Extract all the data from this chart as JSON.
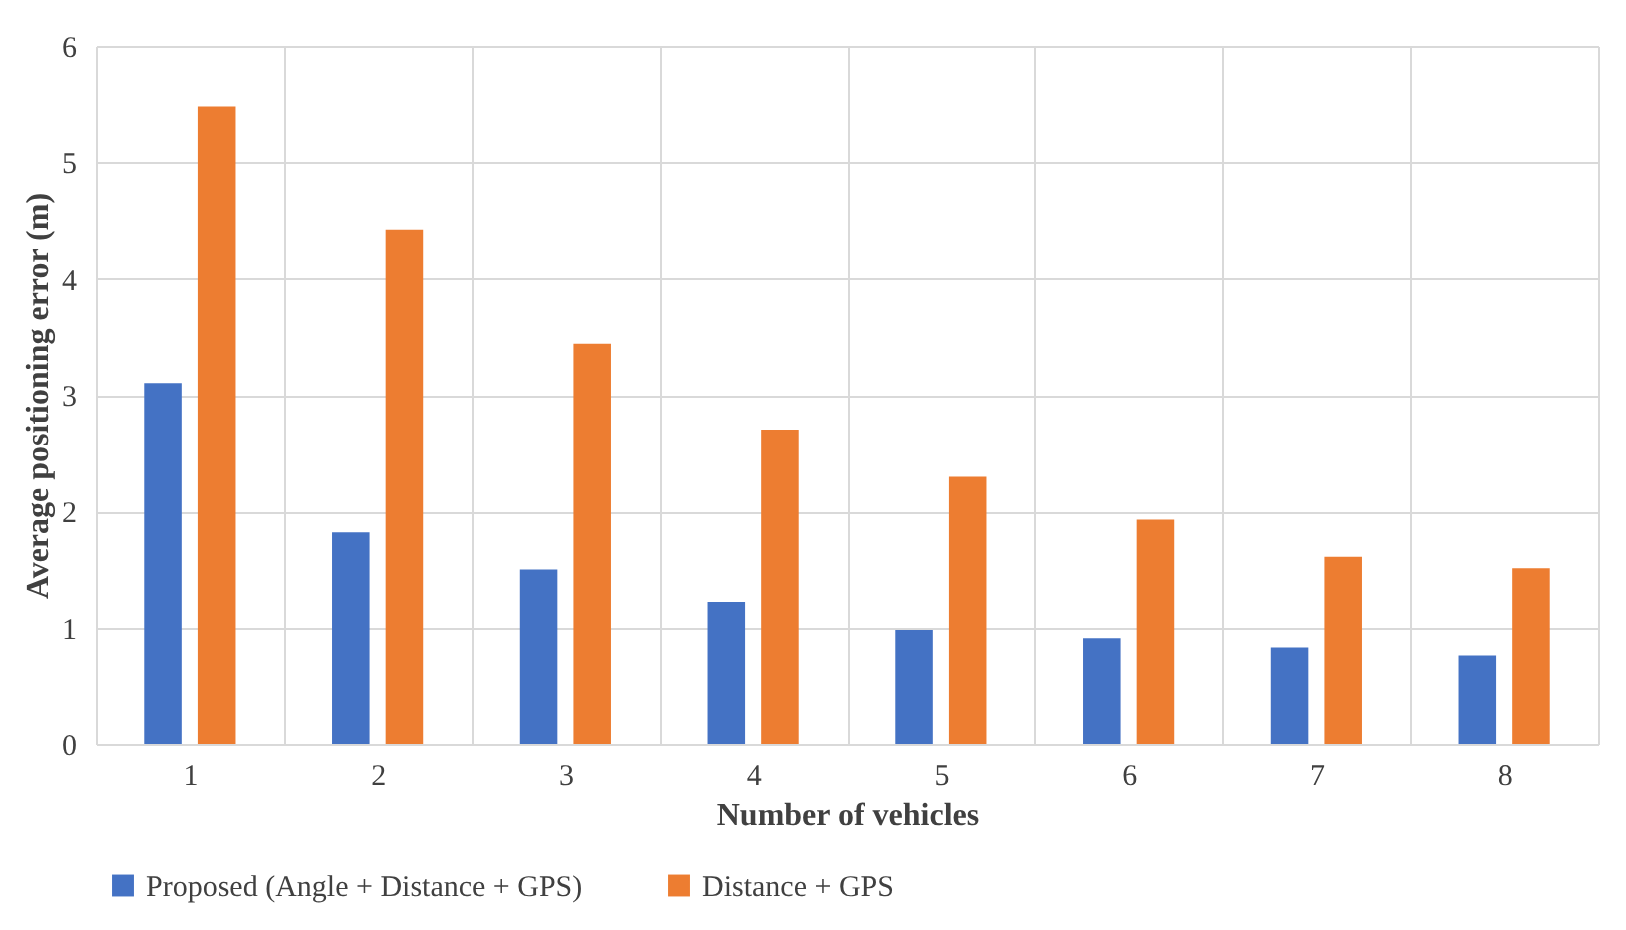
{
  "chart_data": {
    "type": "bar",
    "xlabel": "Number of vehicles",
    "ylabel": "Average positioning error (m)",
    "categories": [
      "1",
      "2",
      "3",
      "4",
      "5",
      "6",
      "7",
      "8"
    ],
    "series": [
      {
        "name": "Proposed (Angle + Distance + GPS)",
        "color": "#4472c4",
        "values": [
          3.1,
          1.82,
          1.5,
          1.22,
          0.98,
          0.91,
          0.83,
          0.76
        ]
      },
      {
        "name": "Distance + GPS",
        "color": "#ed7d31",
        "values": [
          5.48,
          4.42,
          3.44,
          2.7,
          2.3,
          1.93,
          1.61,
          1.51
        ]
      }
    ],
    "ylim": [
      0,
      6
    ],
    "yticks": [
      0,
      1,
      2,
      3,
      4,
      5,
      6
    ],
    "grid": true,
    "legend": "bottom"
  }
}
